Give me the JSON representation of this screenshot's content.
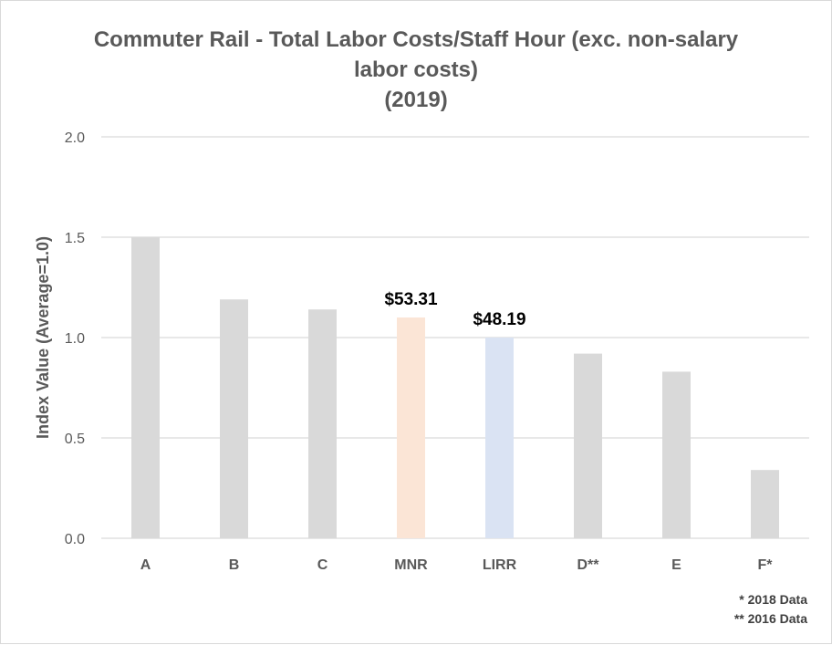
{
  "chart_data": {
    "type": "bar",
    "title_lines": [
      "Commuter Rail - Total Labor Costs/Staff Hour (exc. non-salary",
      "labor costs)",
      "(2019)"
    ],
    "xlabel": "",
    "ylabel": "Index Value (Average=1.0)",
    "ylim": [
      0,
      2.0
    ],
    "yticks": [
      0,
      0.5,
      1.0,
      1.5,
      2.0
    ],
    "ytick_labels": [
      "0.0",
      "0.5",
      "1.0",
      "1.5",
      "2.0"
    ],
    "grid": true,
    "categories": [
      "A",
      "B",
      "C",
      "MNR",
      "LIRR",
      "D**",
      "E",
      "F*"
    ],
    "values": [
      1.5,
      1.19,
      1.14,
      1.1,
      1.0,
      0.92,
      0.83,
      0.34
    ],
    "bar_colors": [
      "#d9d9d9",
      "#d9d9d9",
      "#d9d9d9",
      "#fbe5d6",
      "#dae3f3",
      "#d9d9d9",
      "#d9d9d9",
      "#d9d9d9"
    ],
    "data_labels": {
      "MNR": "$53.31",
      "LIRR": "$48.19"
    },
    "footnotes": [
      "* 2018 Data",
      "** 2016 Data"
    ]
  }
}
